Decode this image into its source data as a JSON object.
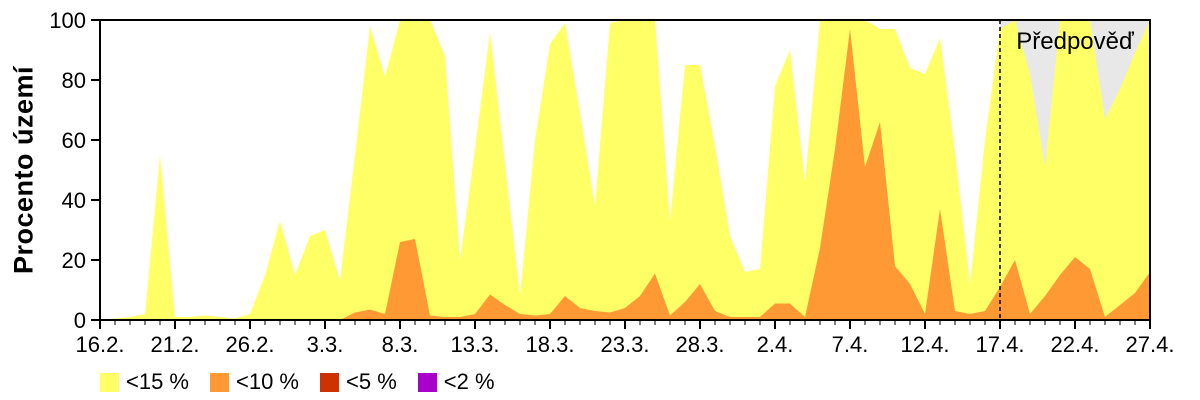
{
  "chart_data": {
    "type": "area",
    "title": "",
    "ylabel": "Procento území",
    "xlabel": "",
    "ylim": [
      0,
      100
    ],
    "y_ticks": [
      0,
      20,
      40,
      60,
      80,
      100
    ],
    "x_tick_labels": [
      "16.2.",
      "21.2.",
      "26.2.",
      "3.3.",
      "8.3.",
      "13.3.",
      "18.3.",
      "23.3.",
      "28.3.",
      "2.4.",
      "7.4.",
      "12.4.",
      "17.4.",
      "22.4.",
      "27.4."
    ],
    "x_major_tick_interval_days": 5,
    "x_minor_tick_interval_days": 1,
    "days_total": 71,
    "grid": "off",
    "legend_position": "bottom-left",
    "axis_color": "#000000",
    "background_color": "#ffffff",
    "forecast": {
      "label": "Předpověď",
      "start_tick_label": "17.4.",
      "start_day_index": 60,
      "region_color": "#e8e8e8",
      "divider_style": "dashed"
    },
    "series": [
      {
        "name": "<15 %",
        "color": "#ffff66",
        "values": [
          0,
          0.5,
          1,
          2,
          55,
          1,
          1,
          1.5,
          1,
          0.5,
          2,
          15,
          33,
          15,
          28,
          30,
          13,
          55,
          98,
          81,
          100,
          100,
          100,
          88,
          20,
          57,
          96,
          52,
          8,
          60,
          92,
          99,
          69,
          38,
          99,
          100,
          100,
          100,
          33,
          85,
          85,
          58,
          28,
          16,
          17,
          78,
          90,
          46,
          100,
          100,
          100,
          100,
          97,
          97,
          84,
          82,
          94,
          56,
          12,
          60,
          97,
          100,
          82,
          51,
          100,
          100,
          100,
          67,
          77,
          89,
          100
        ]
      },
      {
        "name": "<10 %",
        "color": "#ff9933",
        "values": [
          0,
          0,
          0,
          0,
          0,
          0,
          0,
          0,
          0,
          0,
          0,
          0,
          0,
          0,
          0,
          0,
          0,
          2.5,
          3.5,
          2,
          26,
          27,
          1.5,
          1,
          1,
          2,
          8.5,
          5,
          2,
          1.5,
          2,
          8,
          4,
          3,
          2.5,
          4,
          8,
          15.5,
          1.5,
          6,
          12,
          3,
          1,
          1,
          1,
          5.5,
          5.5,
          1,
          24,
          57,
          97,
          51,
          66,
          18,
          12,
          2,
          37,
          3,
          2,
          3,
          11,
          20,
          2,
          8,
          15,
          21,
          17,
          1,
          5,
          9,
          16
        ]
      },
      {
        "name": "<5 %",
        "color": "#cc3300",
        "values": [
          0,
          0,
          0,
          0,
          0,
          0,
          0,
          0,
          0,
          0,
          0,
          0,
          0,
          0,
          0,
          0,
          0,
          0,
          0,
          0,
          0,
          0,
          0,
          0,
          0,
          0,
          0,
          0,
          0,
          0,
          0,
          0,
          0,
          0,
          0,
          0,
          0,
          0,
          0,
          0,
          0,
          0,
          0,
          0,
          0,
          0,
          0,
          0,
          0,
          0,
          0,
          0,
          0,
          0,
          0,
          0,
          0,
          0,
          0,
          0,
          0,
          0,
          0,
          0,
          0,
          0,
          0,
          0,
          0,
          0,
          0
        ]
      },
      {
        "name": "<2 %",
        "color": "#aa00cc",
        "values": [
          0,
          0,
          0,
          0,
          0,
          0,
          0,
          0,
          0,
          0,
          0,
          0,
          0,
          0,
          0,
          0,
          0,
          0,
          0,
          0,
          0,
          0,
          0,
          0,
          0,
          0,
          0,
          0,
          0,
          0,
          0,
          0,
          0,
          0,
          0,
          0,
          0,
          0,
          0,
          0,
          0,
          0,
          0,
          0,
          0,
          0,
          0,
          0,
          0,
          0,
          0,
          0,
          0,
          0,
          0,
          0,
          0,
          0,
          0,
          0,
          0,
          0,
          0,
          0,
          0,
          0,
          0,
          0,
          0,
          0,
          0
        ]
      }
    ]
  }
}
